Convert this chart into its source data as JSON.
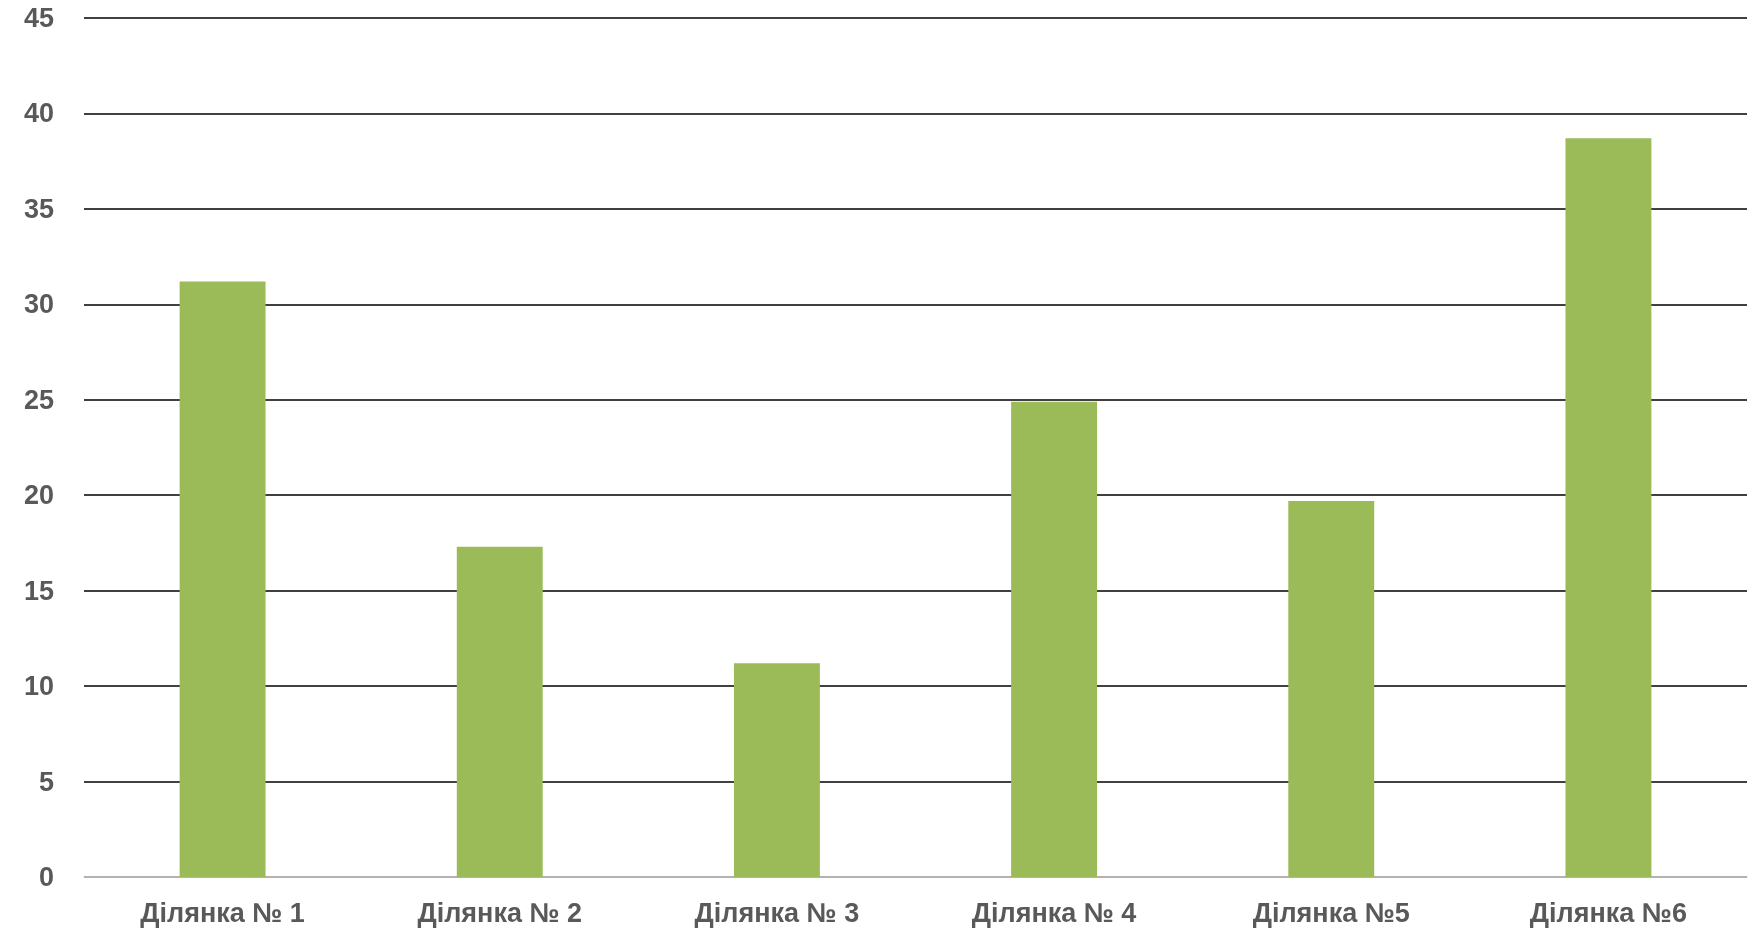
{
  "chart_data": {
    "type": "bar",
    "categories": [
      "Ділянка № 1",
      "Ділянка № 2",
      "Ділянка № 3",
      "Ділянка № 4",
      "Ділянка №5",
      "Ділянка №6"
    ],
    "values": [
      31.2,
      17.3,
      11.2,
      24.9,
      19.7,
      38.7
    ],
    "color": "#9bbb59",
    "ylim": [
      0,
      45
    ],
    "yticks": [
      0,
      5,
      10,
      15,
      20,
      25,
      30,
      35,
      40,
      45
    ],
    "grid": "y"
  }
}
